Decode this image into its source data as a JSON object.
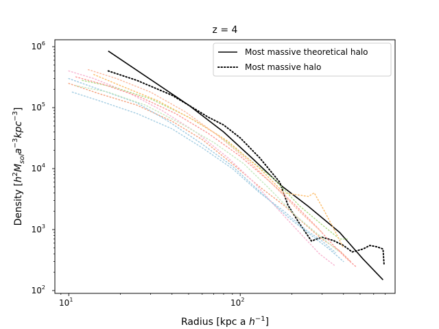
{
  "chart_data": {
    "type": "line",
    "title": "z = 4",
    "xlabel": "Radius [kpc a h⁻¹]",
    "ylabel": "Density [h²M_sol a⁻³ kpc⁻³]",
    "xscale": "log",
    "yscale": "log",
    "xlim": [
      8.3,
      800
    ],
    "ylim": [
      90,
      1300000
    ],
    "xticks": [
      {
        "value": 10,
        "base": "10",
        "exp": "1"
      },
      {
        "value": 100,
        "base": "10",
        "exp": "2"
      }
    ],
    "yticks": [
      {
        "value": 100,
        "base": "10",
        "exp": "2"
      },
      {
        "value": 1000,
        "base": "10",
        "exp": "3"
      },
      {
        "value": 10000,
        "base": "10",
        "exp": "4"
      },
      {
        "value": 100000,
        "base": "10",
        "exp": "5"
      },
      {
        "value": 1000000,
        "base": "10",
        "exp": "6"
      }
    ],
    "grid": false,
    "legend_position": "top-right",
    "series": [
      {
        "name": "Most massive theoretical halo",
        "style": "solid",
        "color": "#000000",
        "width": 1.6,
        "x": [
          17,
          50,
          80,
          120,
          170,
          250,
          380,
          520,
          680
        ],
        "y": [
          850000,
          110000,
          40000,
          14000,
          5500,
          2400,
          900,
          330,
          150
        ]
      },
      {
        "name": "Most massive halo",
        "style": "dotted",
        "color": "#000000",
        "width": 2,
        "x": [
          17,
          25,
          40,
          50,
          65,
          80,
          100,
          130,
          170,
          190,
          220,
          260,
          300,
          350,
          400,
          450,
          520,
          570,
          630,
          680,
          690
        ],
        "y": [
          400000,
          280000,
          160000,
          110000,
          70000,
          52000,
          32000,
          15000,
          6000,
          2500,
          1300,
          650,
          750,
          660,
          550,
          430,
          480,
          550,
          520,
          480,
          270
        ]
      },
      {
        "style": "dotted",
        "color": "#f4a582",
        "width": 1.5,
        "x": [
          10,
          15,
          25,
          40,
          60,
          90,
          130,
          180,
          240,
          300,
          380,
          440
        ],
        "y": [
          250000,
          170000,
          110000,
          60000,
          30000,
          12000,
          5000,
          2500,
          1200,
          700,
          450,
          300
        ]
      },
      {
        "style": "dotted",
        "color": "#a6cee3",
        "width": 1.5,
        "x": [
          10.5,
          15,
          25,
          40,
          60,
          90,
          130,
          180,
          240,
          300,
          360
        ],
        "y": [
          180000,
          130000,
          80000,
          45000,
          22000,
          10000,
          4000,
          2000,
          1000,
          650,
          420
        ]
      },
      {
        "style": "dotted",
        "color": "#f7b6d2",
        "width": 1.5,
        "x": [
          10,
          14,
          22,
          35,
          55,
          85,
          120,
          170,
          230,
          290,
          360
        ],
        "y": [
          400000,
          300000,
          180000,
          90000,
          40000,
          15000,
          6000,
          2000,
          800,
          400,
          250
        ]
      },
      {
        "style": "dotted",
        "color": "#b2df8a",
        "width": 1.5,
        "x": [
          12,
          18,
          30,
          50,
          75,
          110,
          160,
          220,
          300,
          380,
          420
        ],
        "y": [
          280000,
          220000,
          140000,
          70000,
          35000,
          15000,
          6500,
          2500,
          1200,
          700,
          700
        ]
      },
      {
        "style": "dotted",
        "color": "#fdbf6f",
        "width": 1.5,
        "x": [
          14,
          20,
          33,
          55,
          85,
          130,
          180,
          250,
          270,
          310,
          360,
          400
        ],
        "y": [
          350000,
          230000,
          130000,
          60000,
          28000,
          10000,
          4000,
          3500,
          4000,
          2000,
          900,
          500
        ]
      },
      {
        "style": "dotted",
        "color": "#fb9a99",
        "width": 1.5,
        "x": [
          11,
          16,
          26,
          42,
          65,
          100,
          150,
          210,
          280,
          350,
          420,
          470
        ],
        "y": [
          320000,
          240000,
          150000,
          80000,
          38000,
          16000,
          6000,
          2500,
          1100,
          550,
          330,
          250
        ]
      },
      {
        "style": "dotted",
        "color": "#9ecae1",
        "width": 1.5,
        "x": [
          10,
          15,
          25,
          38,
          58,
          90,
          130,
          190,
          260,
          330,
          400
        ],
        "y": [
          300000,
          200000,
          120000,
          60000,
          27000,
          11000,
          4200,
          1600,
          800,
          480,
          300
        ]
      },
      {
        "style": "dotted",
        "color": "#fcbba1",
        "width": 1.5,
        "x": [
          13,
          19,
          30,
          48,
          72,
          110,
          160,
          230,
          300
        ],
        "y": [
          420000,
          300000,
          180000,
          85000,
          37000,
          14000,
          5000,
          1800,
          900
        ]
      },
      {
        "style": "dotted",
        "color": "#c7e9c0",
        "width": 1.5,
        "x": [
          11,
          17,
          28,
          45,
          70,
          105,
          150,
          210,
          290,
          370
        ],
        "y": [
          230000,
          180000,
          110000,
          55000,
          27000,
          12000,
          4500,
          1700,
          800,
          450
        ]
      }
    ],
    "legend": [
      {
        "label": "Most massive theoretical halo",
        "style": "solid"
      },
      {
        "label": "Most massive halo",
        "style": "dotted"
      }
    ]
  }
}
